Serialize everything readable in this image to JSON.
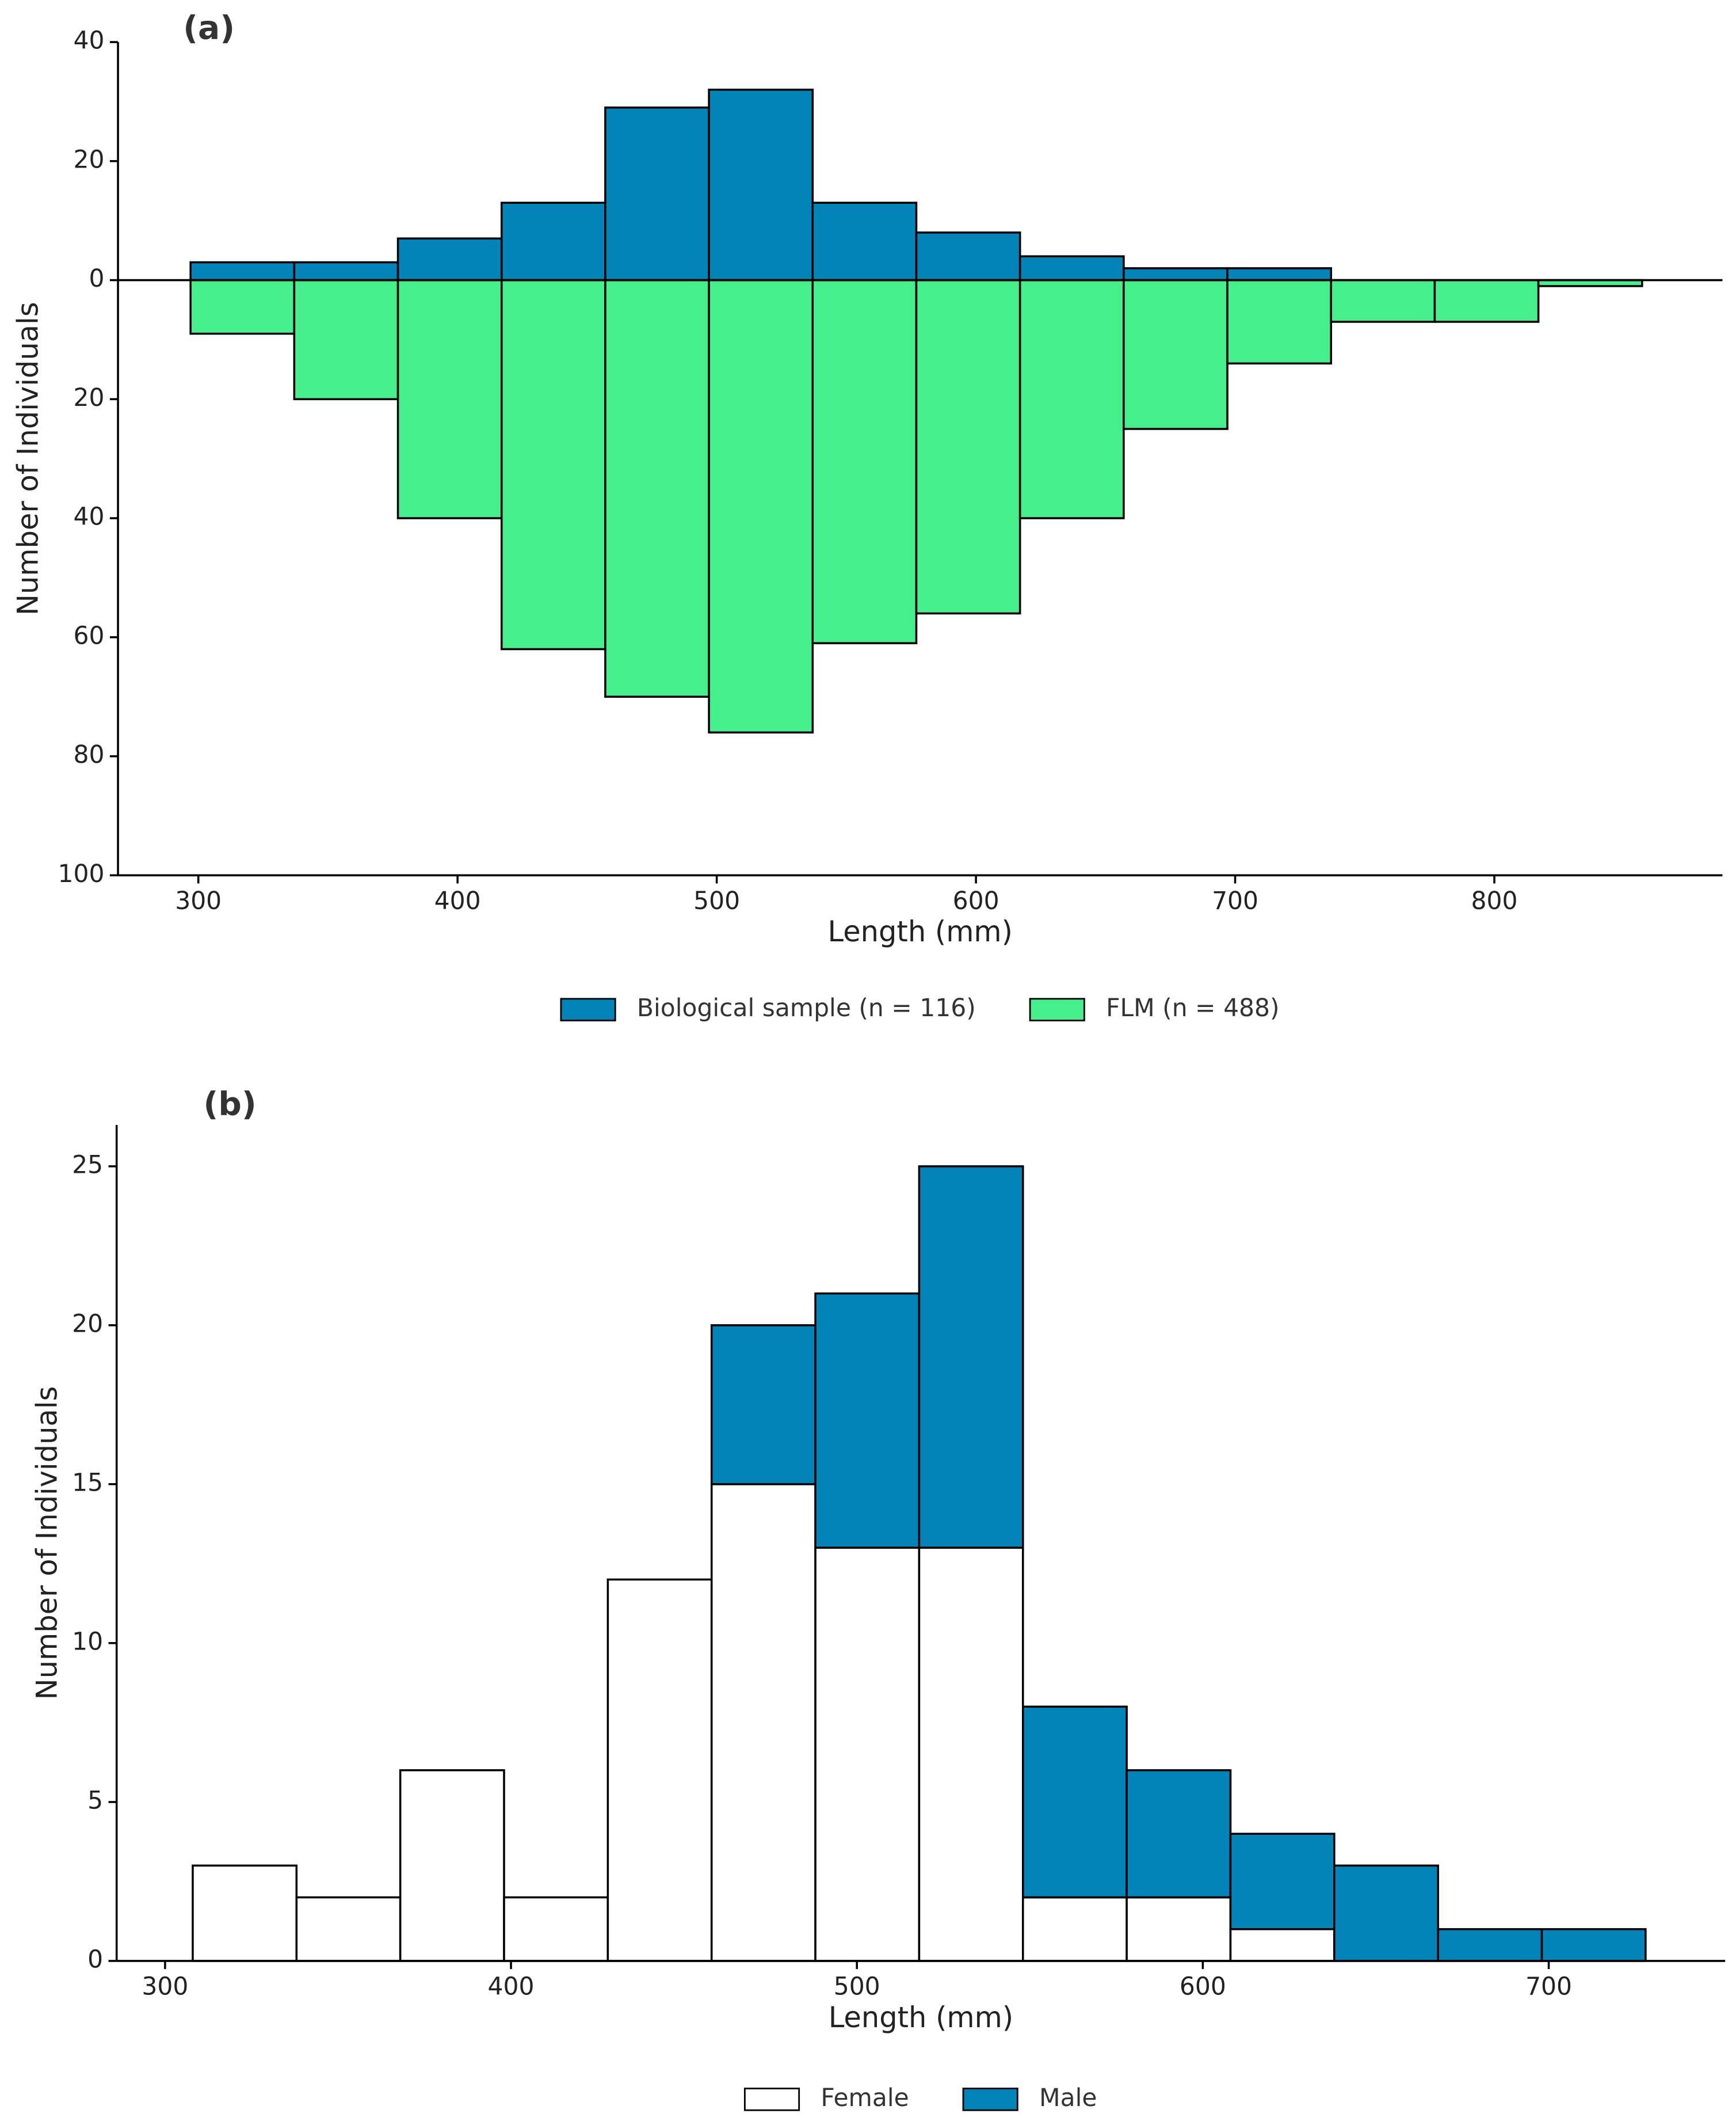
{
  "chart_data": [
    {
      "type": "histogram",
      "panel_label": "(a)",
      "xlabel": "Length (mm)",
      "ylabel": "Number of Individuals",
      "bins": [
        297,
        337,
        377,
        417,
        457,
        497,
        537,
        577,
        617,
        657,
        697,
        737,
        777,
        817,
        857
      ],
      "series": [
        {
          "name": "Biological sample (n = 116)",
          "color": "#0284b8",
          "values": [
            3,
            3,
            7,
            13,
            29,
            32,
            13,
            8,
            4,
            2,
            2,
            0,
            0,
            0
          ]
        },
        {
          "name": "FLM (n = 488)",
          "color": "#44ef8c",
          "values": [
            -9,
            -20,
            -40,
            -62,
            -70,
            -76,
            -61,
            -56,
            -40,
            -25,
            -14,
            -7,
            -7,
            -1
          ]
        }
      ],
      "stacked": false,
      "zero_line": true,
      "xlim": [
        269,
        888
      ],
      "xticks": [
        300,
        400,
        500,
        600,
        700,
        800
      ],
      "ylim": [
        -100,
        40
      ],
      "yticks": [
        40,
        20,
        0,
        {
          "value": -20,
          "label": "20"
        },
        {
          "value": -40,
          "label": "40"
        },
        {
          "value": -60,
          "label": "60"
        },
        {
          "value": -80,
          "label": "80"
        },
        {
          "value": -100,
          "label": "100"
        }
      ],
      "legend": "below"
    },
    {
      "type": "histogram",
      "panel_label": "(b)",
      "xlabel": "Length (mm)",
      "ylabel": "Number of Individuals",
      "bins": [
        308,
        338,
        368,
        398,
        428,
        458,
        488,
        518,
        548,
        578,
        608,
        638,
        668,
        698,
        728
      ],
      "series": [
        {
          "name": "Female",
          "color": "#ffffff",
          "values": [
            3,
            2,
            6,
            2,
            12,
            15,
            13,
            13,
            2,
            2,
            1,
            0,
            0,
            0
          ]
        },
        {
          "name": "Male",
          "color": "#0284b8",
          "values": [
            0,
            0,
            0,
            0,
            0,
            5,
            8,
            12,
            6,
            4,
            3,
            3,
            1,
            1
          ]
        }
      ],
      "stacked": true,
      "zero_line": false,
      "xlim": [
        286,
        751
      ],
      "xticks": [
        300,
        400,
        500,
        600,
        700
      ],
      "ylim": [
        0,
        26.3
      ],
      "yticks": [
        0,
        5,
        10,
        15,
        20,
        25
      ],
      "legend": "below"
    }
  ]
}
